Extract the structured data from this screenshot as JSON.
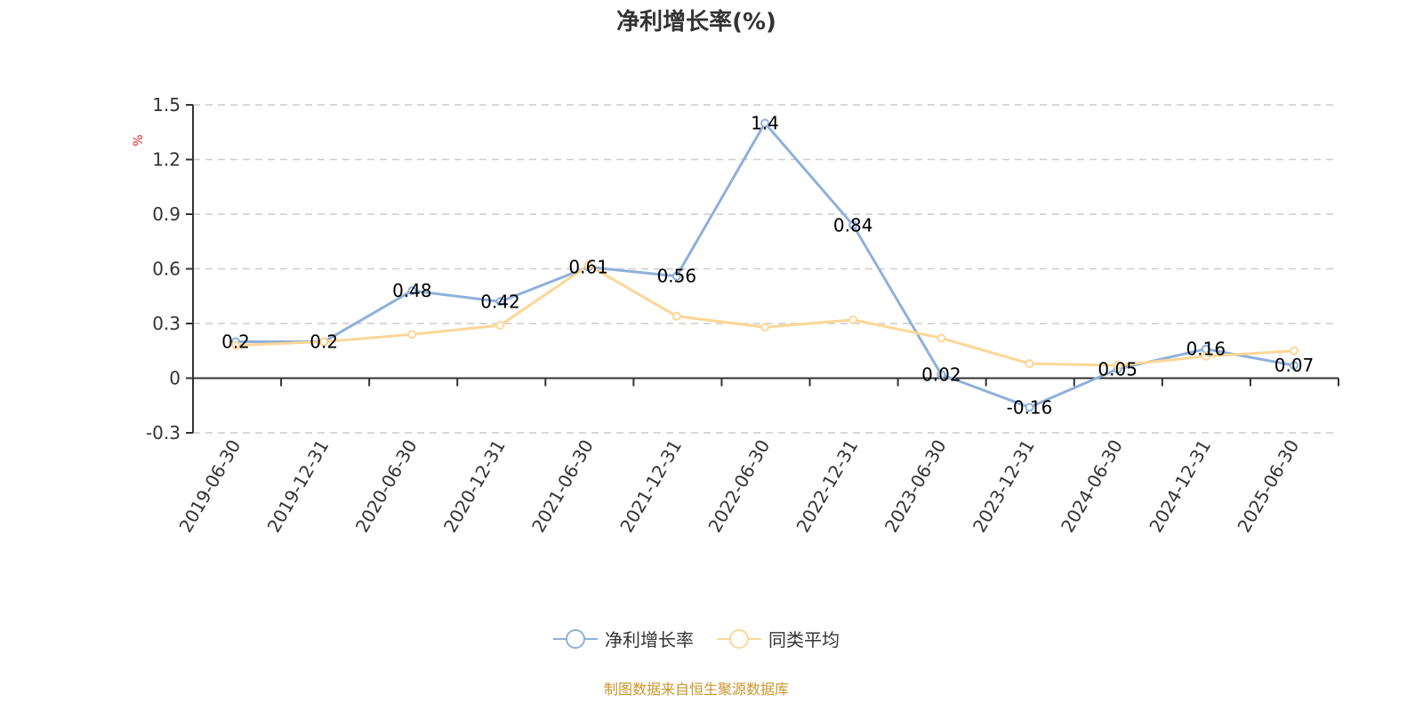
{
  "title": "净利增长率(%)",
  "source": "制图数据来自恒生聚源数据库",
  "colors": {
    "series_main": "#8eb0dc",
    "series_avg": "#fdd696",
    "source_text": "#c8962d",
    "unit_text": "#e8262d",
    "grid": "#cccccc",
    "axis": "#333333"
  },
  "legend": [
    {
      "label": "净利增长率",
      "icon": "circle-line-icon",
      "color": "#8eb0dc"
    },
    {
      "label": "同类平均",
      "icon": "circle-line-icon",
      "color": "#fdd696"
    }
  ],
  "chart_data": {
    "type": "line",
    "title": "净利增长率(%)",
    "xlabel": "",
    "ylabel": "%",
    "ylim": [
      -0.3,
      1.5
    ],
    "yticks": [
      -0.3,
      0,
      0.3,
      0.6,
      0.9,
      1.2,
      1.5
    ],
    "ytick_labels": [
      "-0.3",
      "0",
      "0.3",
      "0.6",
      "0.9",
      "1.2",
      "1.5"
    ],
    "grid": "horizontal dashed",
    "legend_position": "bottom",
    "categories": [
      "2019-06-30",
      "2019-12-31",
      "2020-06-30",
      "2020-12-31",
      "2021-06-30",
      "2021-12-31",
      "2022-06-30",
      "2022-12-31",
      "2023-06-30",
      "2023-12-31",
      "2024-06-30",
      "2024-12-31",
      "2025-06-30"
    ],
    "series": [
      {
        "name": "净利增长率",
        "color": "#8eb0dc",
        "show_labels": true,
        "values": [
          0.2,
          0.2,
          0.48,
          0.42,
          0.61,
          0.56,
          1.4,
          0.84,
          0.02,
          -0.16,
          0.05,
          0.16,
          0.07
        ]
      },
      {
        "name": "同类平均",
        "color": "#fdd696",
        "show_labels": false,
        "values": [
          0.18,
          0.2,
          0.24,
          0.29,
          0.62,
          0.34,
          0.28,
          0.32,
          0.22,
          0.08,
          0.07,
          0.12,
          0.15
        ]
      }
    ]
  }
}
